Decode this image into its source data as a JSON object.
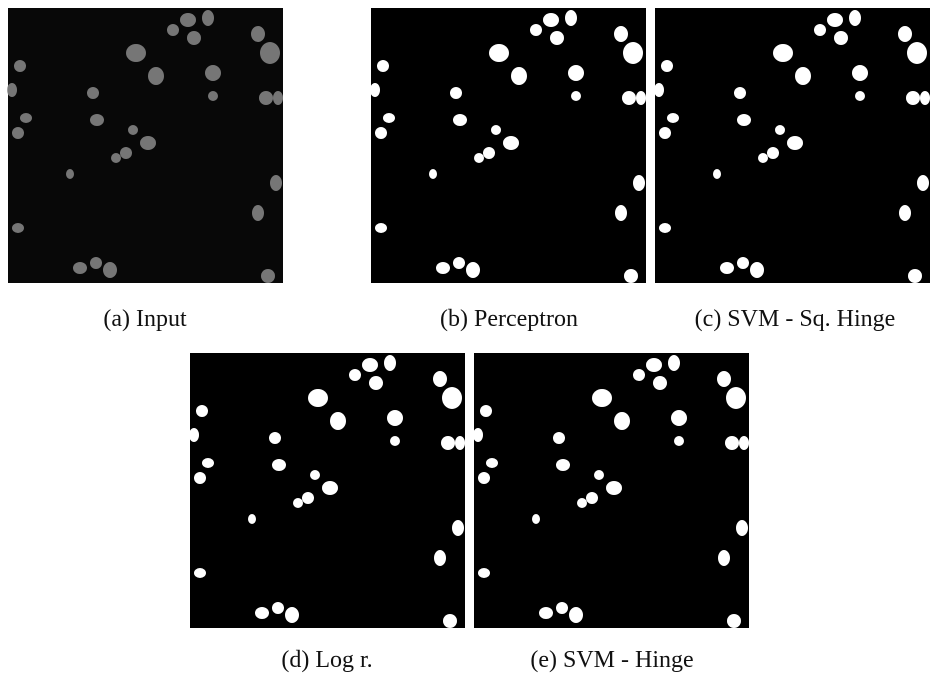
{
  "figure": {
    "panels": [
      {
        "caption": "(a) Input"
      },
      {
        "caption": "(b) Perceptron"
      },
      {
        "caption": "(c) SVM - Sq. Hinge"
      },
      {
        "caption": "(d) Log r."
      },
      {
        "caption": "(e) SVM - Hinge"
      }
    ]
  }
}
